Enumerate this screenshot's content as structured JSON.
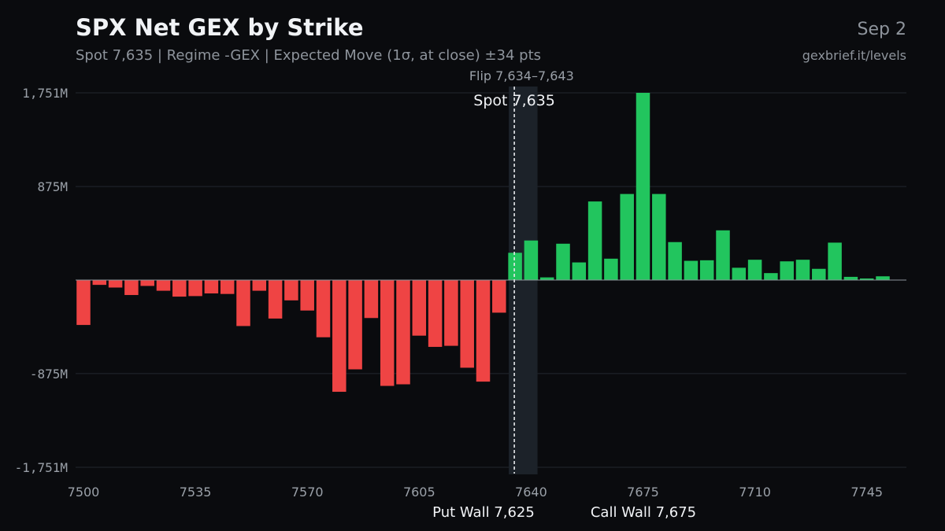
{
  "header": {
    "title": "SPX Net GEX by Strike",
    "subtitle": "Spot 7,635 | Regime -GEX | Expected Move (1σ, at close) ±34 pts",
    "date": "Sep 2",
    "source": "gexbrief.it/levels"
  },
  "colors": {
    "background": "#0a0b0e",
    "positive": "#22c55e",
    "negative": "#ef4444",
    "grid": "#23272e",
    "flip_band": "#1c2229"
  },
  "chart_data": {
    "type": "bar",
    "x": [
      7500,
      7505,
      7510,
      7515,
      7520,
      7525,
      7530,
      7535,
      7540,
      7545,
      7550,
      7555,
      7560,
      7565,
      7570,
      7575,
      7580,
      7585,
      7590,
      7595,
      7600,
      7605,
      7610,
      7615,
      7620,
      7625,
      7630,
      7635,
      7640,
      7645,
      7650,
      7655,
      7660,
      7665,
      7670,
      7675,
      7680,
      7685,
      7690,
      7695,
      7700,
      7705,
      7710,
      7715,
      7720,
      7725,
      7730,
      7735,
      7740,
      7745,
      7750
    ],
    "values": [
      -420,
      -45,
      -70,
      -140,
      -55,
      -100,
      -155,
      -150,
      -125,
      -130,
      -430,
      -100,
      -360,
      -190,
      -285,
      -535,
      -1045,
      -835,
      -355,
      -990,
      -975,
      -520,
      -625,
      -615,
      -820,
      -950,
      -305,
      255,
      370,
      25,
      340,
      165,
      735,
      200,
      805,
      1751,
      805,
      355,
      180,
      185,
      465,
      115,
      190,
      65,
      175,
      190,
      105,
      350,
      30,
      15,
      35
    ],
    "xlabel": "",
    "ylabel": "",
    "ylim": [
      -1751,
      1751
    ],
    "xlim": [
      7500,
      7750
    ],
    "y_ticks": [
      1751,
      875,
      -875,
      -1751
    ],
    "y_tick_labels": [
      "1,751M",
      "875M",
      "-875M",
      "-1,751M"
    ],
    "x_ticks": [
      7500,
      7535,
      7570,
      7605,
      7640,
      7675,
      7710,
      7745
    ],
    "x_tick_labels": [
      "7500",
      "7535",
      "7570",
      "7605",
      "7640",
      "7675",
      "7710",
      "7745"
    ],
    "grid": true,
    "spot": {
      "value": 7635,
      "label": "Spot 7,635"
    },
    "flip_zone": {
      "from": 7634,
      "to": 7643,
      "label": "Flip 7,634–7,643"
    },
    "put_wall": {
      "value": 7625,
      "label": "Put Wall 7,625"
    },
    "call_wall": {
      "value": 7675,
      "label": "Call Wall 7,675"
    }
  }
}
